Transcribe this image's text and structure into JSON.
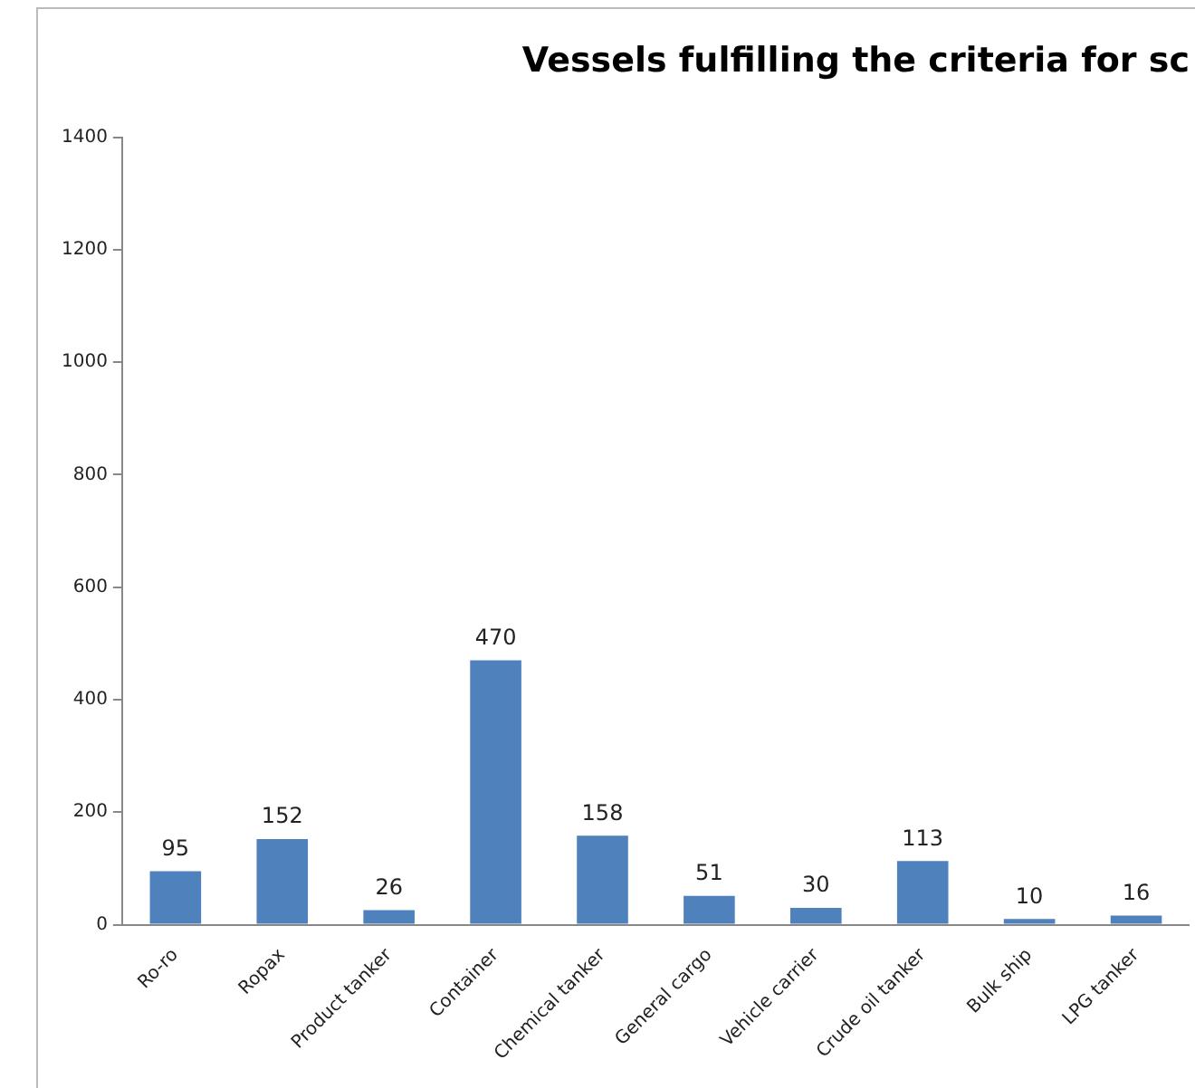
{
  "chart_data": {
    "type": "bar",
    "title": "Vessels fulfilling the criteria for sc",
    "categories": [
      "Ro-ro",
      "Ropax",
      "Product tanker",
      "Container",
      "Chemical tanker",
      "General cargo",
      "Vehicle carrier",
      "Crude oil tanker",
      "Bulk ship",
      "LPG tanker"
    ],
    "values": [
      95,
      152,
      26,
      470,
      158,
      51,
      30,
      113,
      10,
      16
    ],
    "color": "#4f81bd",
    "ylim": [
      0,
      1400
    ],
    "yticks": [
      0,
      200,
      400,
      600,
      800,
      1000,
      1200,
      1400
    ],
    "grid": false,
    "data_labels": true
  }
}
